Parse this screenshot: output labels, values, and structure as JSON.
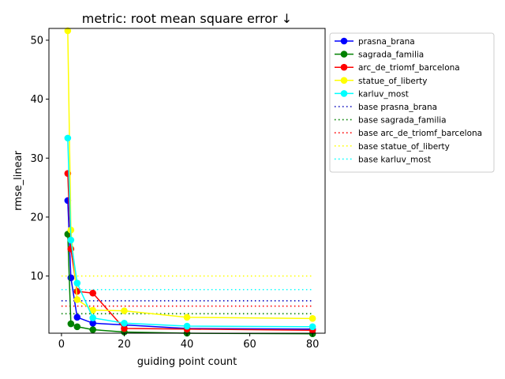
{
  "chart_data": {
    "type": "line",
    "title": "metric: root mean square error ↓",
    "xlabel": "guiding point count",
    "ylabel": "rmse_linear",
    "xlim": [
      -4,
      84
    ],
    "ylim": [
      0.3,
      52
    ],
    "xticks": [
      0,
      20,
      40,
      60,
      80
    ],
    "yticks": [
      10,
      20,
      30,
      40,
      50
    ],
    "x": [
      2,
      3,
      5,
      10,
      20,
      40,
      80
    ],
    "grid": false,
    "legend_position": "upper-right-outside",
    "series": [
      {
        "name": "prasna_brana",
        "color": "#0000ff",
        "values": [
          22.8,
          9.7,
          3.0,
          2.0,
          1.7,
          1.1,
          1.0
        ]
      },
      {
        "name": "sagrada_familia",
        "color": "#008000",
        "values": [
          17.1,
          1.9,
          1.4,
          0.9,
          0.5,
          0.3,
          0.2
        ]
      },
      {
        "name": "arc_de_triomf_barcelona",
        "color": "#ff0000",
        "values": [
          27.4,
          14.6,
          7.4,
          7.1,
          1.1,
          1.0,
          0.8
        ]
      },
      {
        "name": "statue_of_liberty",
        "color": "#ffff00",
        "values": [
          51.6,
          17.8,
          6.0,
          4.2,
          4.1,
          3.0,
          2.8
        ]
      },
      {
        "name": "karluv_most",
        "color": "#00ffff",
        "values": [
          33.4,
          16.1,
          8.8,
          2.9,
          2.0,
          1.5,
          1.4
        ]
      }
    ],
    "baselines": [
      {
        "name": "base prasna_brana",
        "color": "#0000bb",
        "value": 5.8
      },
      {
        "name": "base sagrada_familia",
        "color": "#008000",
        "value": 3.6
      },
      {
        "name": "base arc_de_triomf_barcelona",
        "color": "#ff0000",
        "value": 4.9
      },
      {
        "name": "base statue_of_liberty",
        "color": "#ffff00",
        "value": 10.0
      },
      {
        "name": "base karluv_most",
        "color": "#00ffff",
        "value": 7.7
      }
    ]
  }
}
